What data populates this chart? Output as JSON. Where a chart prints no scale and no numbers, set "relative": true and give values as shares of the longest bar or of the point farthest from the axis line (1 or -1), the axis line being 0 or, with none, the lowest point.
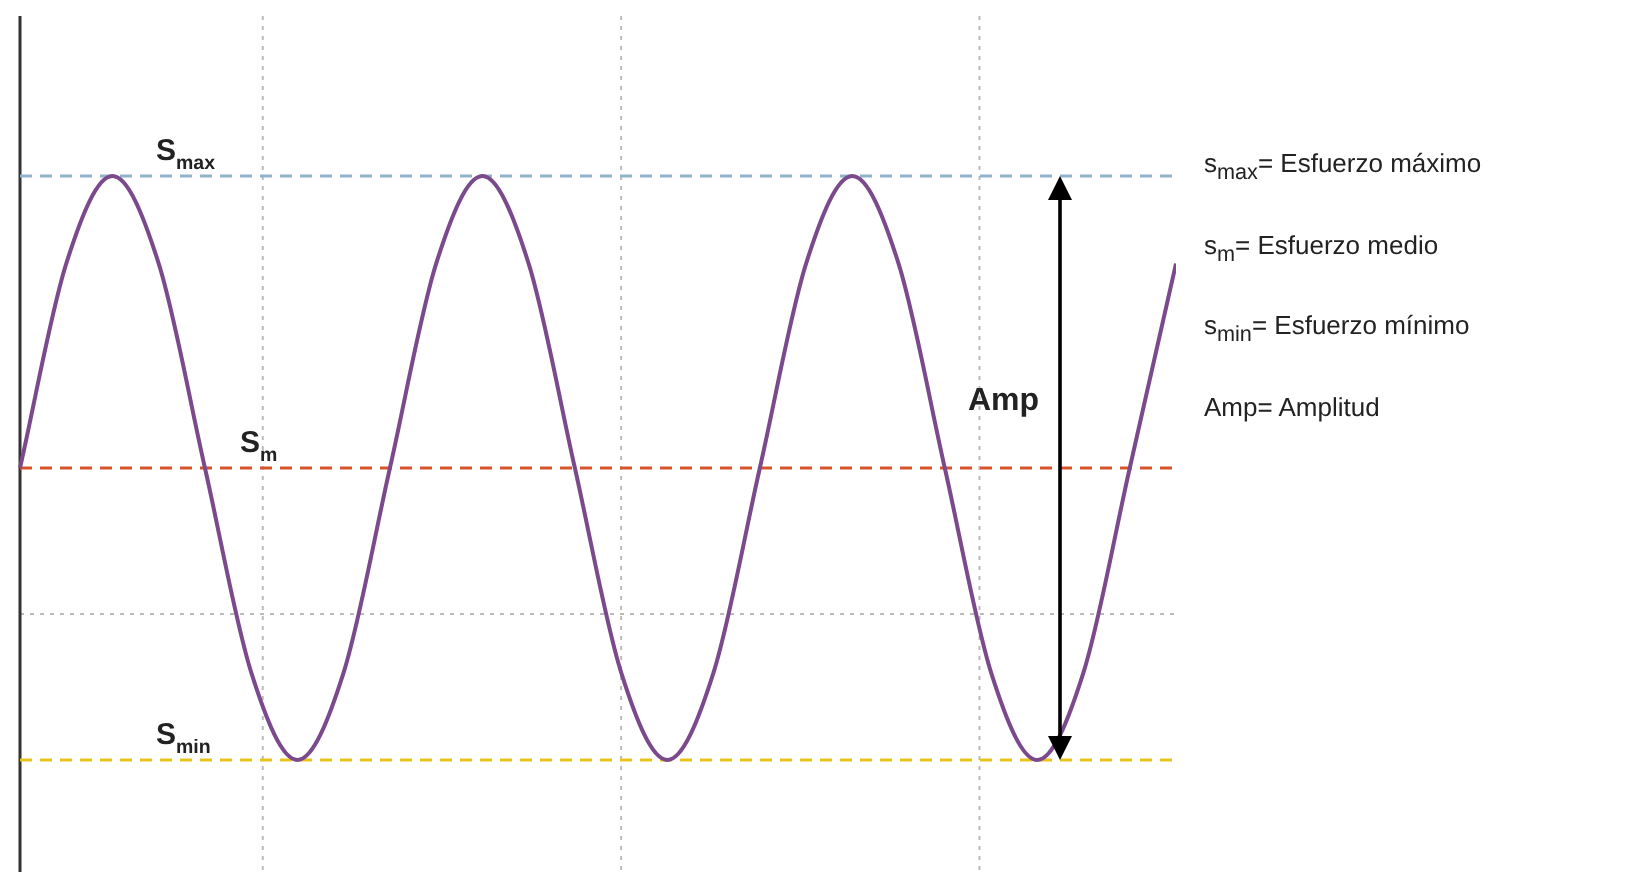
{
  "chart_data": {
    "type": "line",
    "relative": true,
    "categories": [
      null,
      null,
      null,
      null,
      null,
      null,
      null,
      null,
      null,
      null,
      null,
      null,
      null,
      null,
      null,
      null,
      null,
      null,
      null,
      null,
      null,
      null,
      null,
      null,
      null,
      null
    ],
    "series": [
      {
        "color": "#7b4a8c",
        "values": [
          0.5,
          0.85,
          1,
          0.85,
          0.5,
          0.15,
          0,
          0.15,
          0.5,
          0.85,
          1,
          0.85,
          0.5,
          0.15,
          0,
          0.15,
          0.5,
          0.85,
          1,
          0.85,
          0.5,
          0.15,
          0,
          0.15,
          0.5,
          0.85
        ]
      }
    ],
    "ref_lines": [
      {
        "axis": "y",
        "value": 1,
        "label": "S$_{max}$",
        "color": "#8fb3c9",
        "line_style": "dashed"
      },
      {
        "axis": "y",
        "value": 0.5,
        "label": "S$_{m}$",
        "color": "#d9542b",
        "line_style": "dashed"
      },
      {
        "axis": "y",
        "value": 0,
        "label": "S$_{min}$",
        "color": "#e8c41a",
        "line_style": "dashed"
      }
    ],
    "annotations": [
      "Amp",
      "s$_{max}$= Esfuerzo máximo",
      "s$_{m}$= Esfuerzo medio",
      "s$_{min}$= Esfuerzo mínimo",
      "Amp= Amplitud"
    ],
    "grid": true,
    "legend": false,
    "marker": "none",
    "line_style": "solid"
  }
}
